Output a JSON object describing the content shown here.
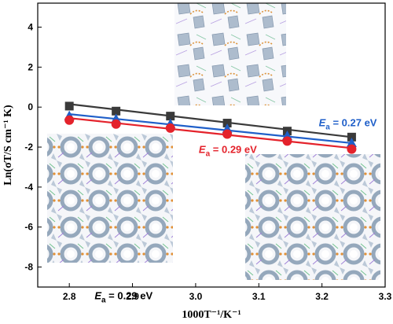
{
  "chart_data": {
    "type": "line",
    "xlabel": "1000T⁻¹/K⁻¹",
    "ylabel": "Ln(σT/S cm⁻¹ K)",
    "xlim": [
      2.75,
      3.3
    ],
    "ylim": [
      -9,
      5.2
    ],
    "xticks": [
      "2.8",
      "2.9",
      "3.0",
      "3.1",
      "3.2",
      "3.3"
    ],
    "yticks": [
      "4",
      "2",
      "0",
      "-2",
      "-4",
      "-6",
      "-8"
    ],
    "grid": false,
    "x": [
      2.8,
      2.874,
      2.96,
      3.05,
      3.145,
      3.247
    ],
    "series": [
      {
        "name": "",
        "marker": "square",
        "color": "#3a3a3a",
        "values": [
          0.05,
          -0.2,
          -0.45,
          -0.8,
          -1.2,
          -1.5
        ],
        "fit": [
          0.15,
          -1.5
        ]
      },
      {
        "name": "",
        "marker": "triangle",
        "color": "#1f5fc9",
        "values": [
          -0.45,
          -0.6,
          -0.85,
          -1.1,
          -1.45,
          -1.8
        ],
        "fit": [
          -0.35,
          -1.8
        ]
      },
      {
        "name": "",
        "marker": "circle",
        "color": "#e4222b",
        "values": [
          -0.65,
          -0.85,
          -1.05,
          -1.35,
          -1.7,
          -2.1
        ],
        "fit": [
          -0.55,
          -2.05
        ]
      }
    ],
    "annotations": [
      {
        "base": "E",
        "sub": "a",
        "text": " = 0.27 eV",
        "color": "#1f5fc9",
        "at": [
          3.195,
          -0.95
        ]
      },
      {
        "base": "E",
        "sub": "a",
        "text": " = 0.29 eV",
        "color": "#e4222b",
        "at": [
          3.005,
          -2.3
        ]
      },
      {
        "base": "E",
        "sub": "a",
        "text": " = 0.29 eV",
        "color": "#000000",
        "at": [
          2.84,
          -9.6
        ]
      }
    ]
  }
}
